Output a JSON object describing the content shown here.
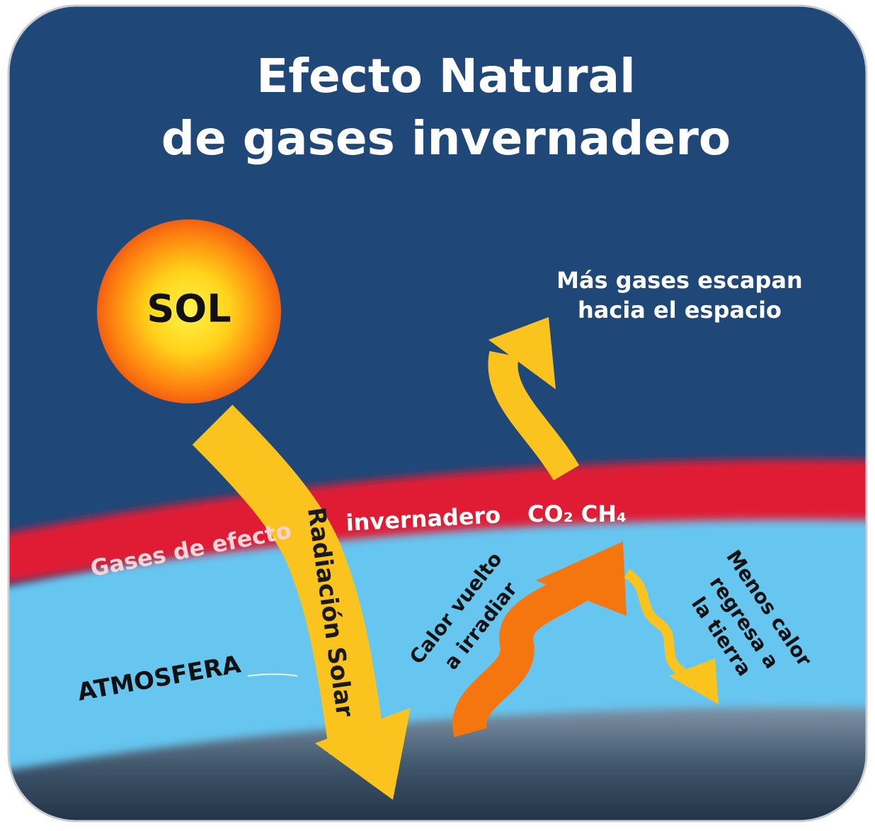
{
  "title": {
    "line1": "Efecto Natural",
    "line2": "de gases invernadero"
  },
  "sun": {
    "label": "SOL"
  },
  "escape": {
    "line1": "Más gases escapan",
    "line2": "hacia el espacio"
  },
  "greenhouse_band": {
    "left": "Gases de efecto",
    "right": "invernadero",
    "gases": "CO₂ CH₄"
  },
  "solar_radiation": {
    "label": "Radiación Solar"
  },
  "reradiated_heat": {
    "line1": "Calor vuelto",
    "line2": "a irradiar"
  },
  "returned_heat": {
    "line1": "Menos calor",
    "line2": "regresa a",
    "line3": "la tierra"
  },
  "atmosphere": {
    "label": "ATMOSFERA"
  }
}
